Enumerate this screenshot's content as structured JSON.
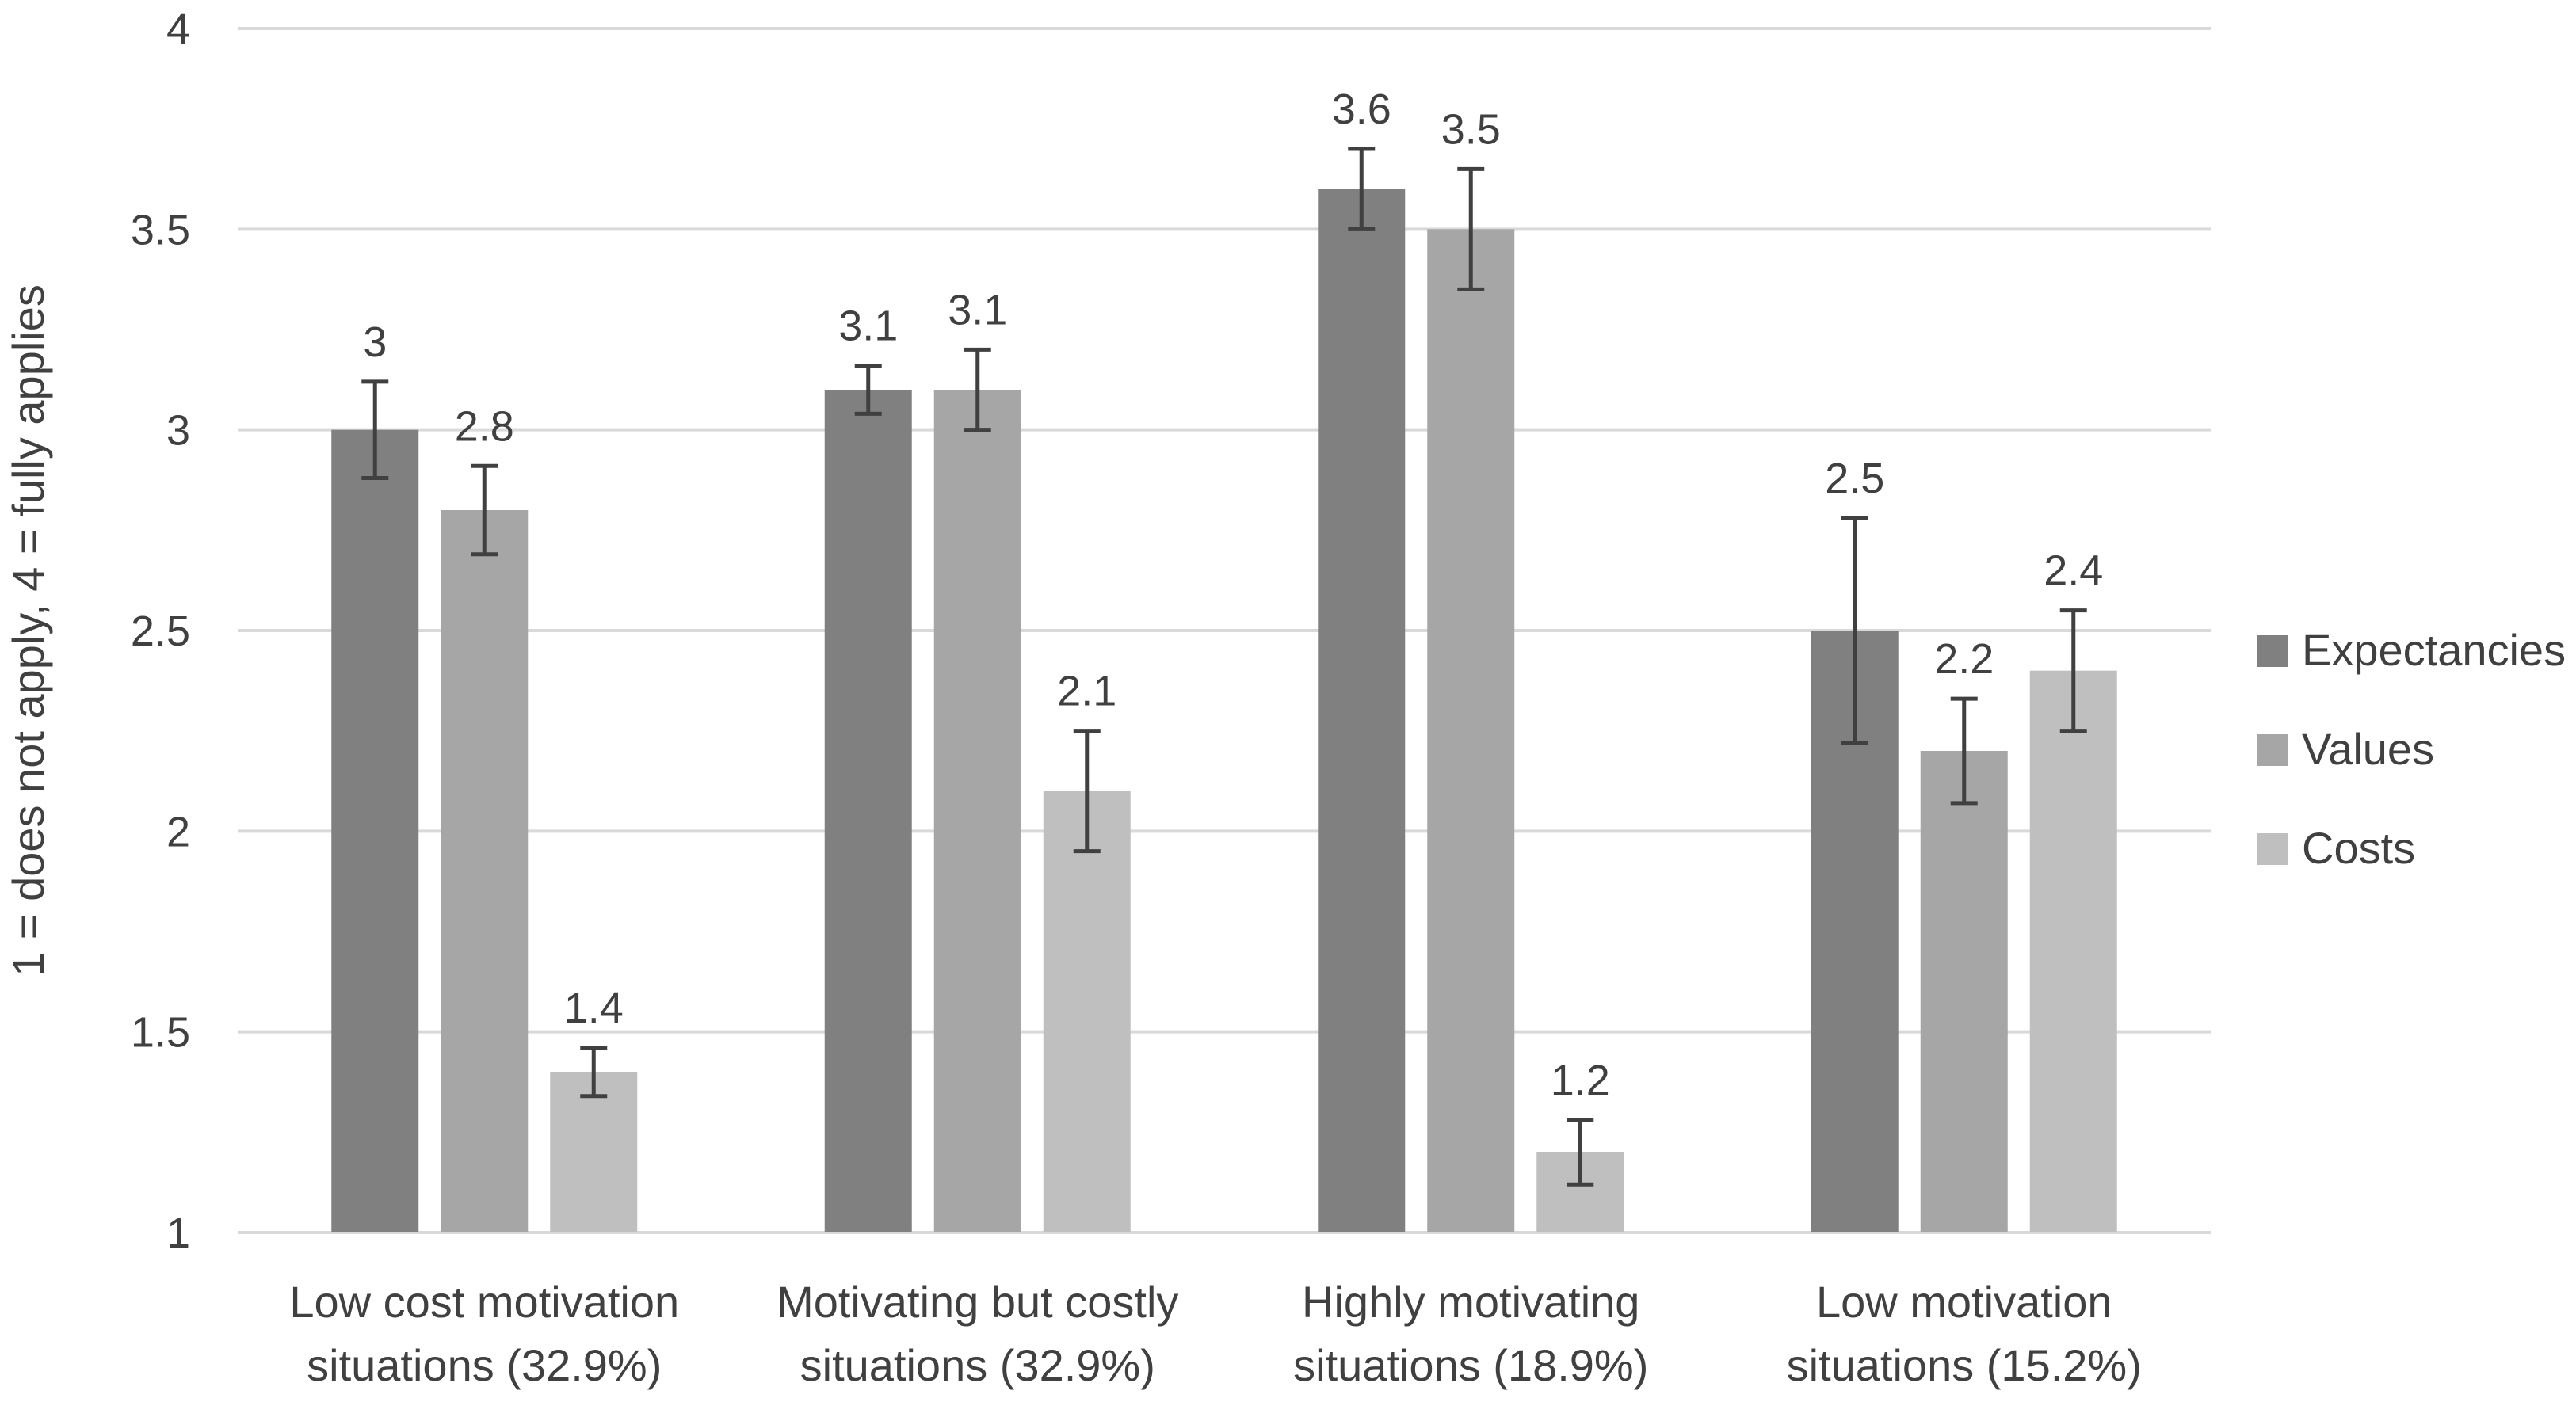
{
  "chart_data": {
    "type": "bar",
    "title": "",
    "xlabel": "",
    "ylabel": "1 = does not apply, 4 = fully applies",
    "ylim": [
      1,
      4
    ],
    "yticks": [
      1,
      1.5,
      2,
      2.5,
      3,
      3.5,
      4
    ],
    "ytick_labels": [
      "1",
      "1.5",
      "2",
      "2.5",
      "3",
      "3.5",
      "4"
    ],
    "grid": true,
    "legend_position": "right",
    "categories": [
      [
        "Low cost motivation",
        "situations (32.9%)"
      ],
      [
        "Motivating but costly",
        "situations (32.9%)"
      ],
      [
        "Highly motivating",
        "situations (18.9%)"
      ],
      [
        "Low motivation",
        "situations (15.2%)"
      ]
    ],
    "series": [
      {
        "name": "Expectancies",
        "color": "#808080",
        "values": [
          3.0,
          3.1,
          3.6,
          2.5
        ],
        "labels": [
          "3",
          "3.1",
          "3.6",
          "2.5"
        ],
        "error": [
          0.12,
          0.06,
          0.1,
          0.28
        ]
      },
      {
        "name": "Values",
        "color": "#a6a6a6",
        "values": [
          2.8,
          3.1,
          3.5,
          2.2
        ],
        "labels": [
          "2.8",
          "3.1",
          "3.5",
          "2.2"
        ],
        "error": [
          0.11,
          0.1,
          0.15,
          0.13
        ]
      },
      {
        "name": "Costs",
        "color": "#bfbfbf",
        "values": [
          1.4,
          2.1,
          1.2,
          2.4
        ],
        "labels": [
          "1.4",
          "2.1",
          "1.2",
          "2.4"
        ],
        "error": [
          0.06,
          0.15,
          0.08,
          0.15
        ]
      }
    ],
    "colors": {
      "gridline": "#d9d9d9",
      "axis_text": "#404040",
      "error_bar": "#404040"
    }
  }
}
